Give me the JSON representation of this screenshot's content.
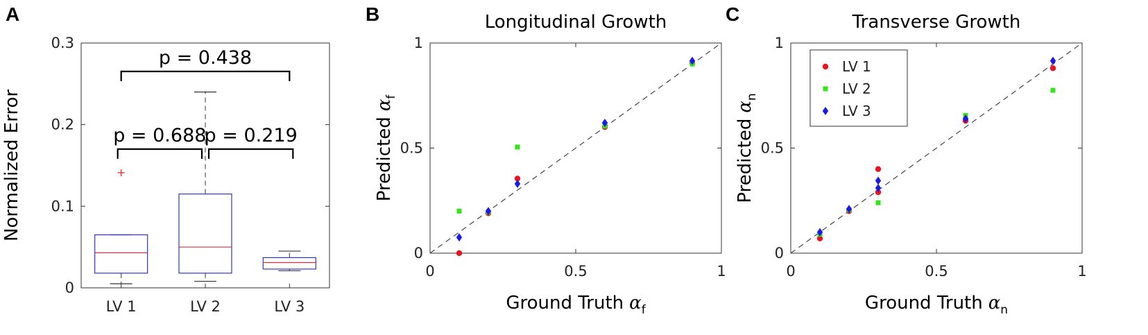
{
  "chart_data": [
    {
      "panel": "A",
      "type": "box",
      "title": "",
      "xlabel": "",
      "ylabel": "Normalized Error",
      "categories": [
        "LV 1",
        "LV 2",
        "LV 3"
      ],
      "ylim": [
        0,
        0.3
      ],
      "yticks": [
        "0",
        "0.1",
        "0.2",
        "0.3"
      ],
      "boxes": [
        {
          "name": "LV 1",
          "whisker_low": 0.005,
          "q1": 0.018,
          "median": 0.043,
          "q3": 0.065,
          "whisker_high": 0.065,
          "outliers": [
            0.141
          ]
        },
        {
          "name": "LV 2",
          "whisker_low": 0.008,
          "q1": 0.018,
          "median": 0.05,
          "q3": 0.115,
          "whisker_high": 0.24,
          "outliers": []
        },
        {
          "name": "LV 3",
          "whisker_low": 0.021,
          "q1": 0.023,
          "median": 0.031,
          "q3": 0.037,
          "whisker_high": 0.045,
          "outliers": []
        }
      ],
      "comparisons": [
        {
          "from": "LV 1",
          "to": "LV 3",
          "label": "p = 0.438"
        },
        {
          "from": "LV 1",
          "to": "LV 2",
          "label": "p = 0.688"
        },
        {
          "from": "LV 2",
          "to": "LV 3",
          "label": "p = 0.219"
        }
      ],
      "box_color": "#3333cc",
      "median_color": "#e0303a",
      "outlier_color": "#e0303a"
    },
    {
      "panel": "B",
      "type": "scatter",
      "title": "Longitudinal Growth",
      "xlabel": "Ground Truth",
      "ylabel": "Predicted",
      "symbol": "α",
      "subscript": "f",
      "xlim": [
        0,
        1
      ],
      "ylim": [
        0,
        1
      ],
      "xticks": [
        "0",
        "0.5",
        "1"
      ],
      "yticks": [
        "0",
        "0.5",
        "1"
      ],
      "identity_line": true,
      "legend": false,
      "series": [
        {
          "name": "LV 1",
          "color": "#e8141e",
          "marker": "circle",
          "points": [
            [
              0.1,
              0.0
            ],
            [
              0.2,
              0.19
            ],
            [
              0.3,
              0.355
            ],
            [
              0.6,
              0.6
            ],
            [
              0.9,
              0.905
            ]
          ]
        },
        {
          "name": "LV 2",
          "color": "#33e61a",
          "marker": "square",
          "points": [
            [
              0.1,
              0.2
            ],
            [
              0.2,
              0.195
            ],
            [
              0.3,
              0.505
            ],
            [
              0.6,
              0.605
            ],
            [
              0.9,
              0.9
            ]
          ]
        },
        {
          "name": "LV 3",
          "color": "#1a1ae6",
          "marker": "diamond",
          "points": [
            [
              0.1,
              0.075
            ],
            [
              0.2,
              0.2
            ],
            [
              0.3,
              0.33
            ],
            [
              0.6,
              0.62
            ],
            [
              0.9,
              0.915
            ]
          ]
        }
      ]
    },
    {
      "panel": "C",
      "type": "scatter",
      "title": "Transverse Growth",
      "xlabel": "Ground Truth",
      "ylabel": "Predicted",
      "symbol": "α",
      "subscript": "n",
      "xlim": [
        0,
        1
      ],
      "ylim": [
        0,
        1
      ],
      "xticks": [
        "0",
        "0.5",
        "1"
      ],
      "yticks": [
        "0",
        "0.5",
        "1"
      ],
      "identity_line": true,
      "legend": true,
      "legend_position": "top-left",
      "series": [
        {
          "name": "LV 1",
          "color": "#e8141e",
          "marker": "circle",
          "points": [
            [
              0.1,
              0.07
            ],
            [
              0.2,
              0.2
            ],
            [
              0.3,
              0.4
            ],
            [
              0.3,
              0.29
            ],
            [
              0.6,
              0.63
            ],
            [
              0.9,
              0.88
            ]
          ]
        },
        {
          "name": "LV 2",
          "color": "#33e61a",
          "marker": "square",
          "points": [
            [
              0.1,
              0.09
            ],
            [
              0.2,
              0.205
            ],
            [
              0.3,
              0.24
            ],
            [
              0.6,
              0.655
            ],
            [
              0.9,
              0.775
            ]
          ]
        },
        {
          "name": "LV 3",
          "color": "#1a1ae6",
          "marker": "diamond",
          "points": [
            [
              0.1,
              0.1
            ],
            [
              0.2,
              0.21
            ],
            [
              0.3,
              0.345
            ],
            [
              0.3,
              0.31
            ],
            [
              0.6,
              0.64
            ],
            [
              0.9,
              0.915
            ]
          ]
        }
      ]
    }
  ],
  "panel_letters": [
    "A",
    "B",
    "C"
  ]
}
